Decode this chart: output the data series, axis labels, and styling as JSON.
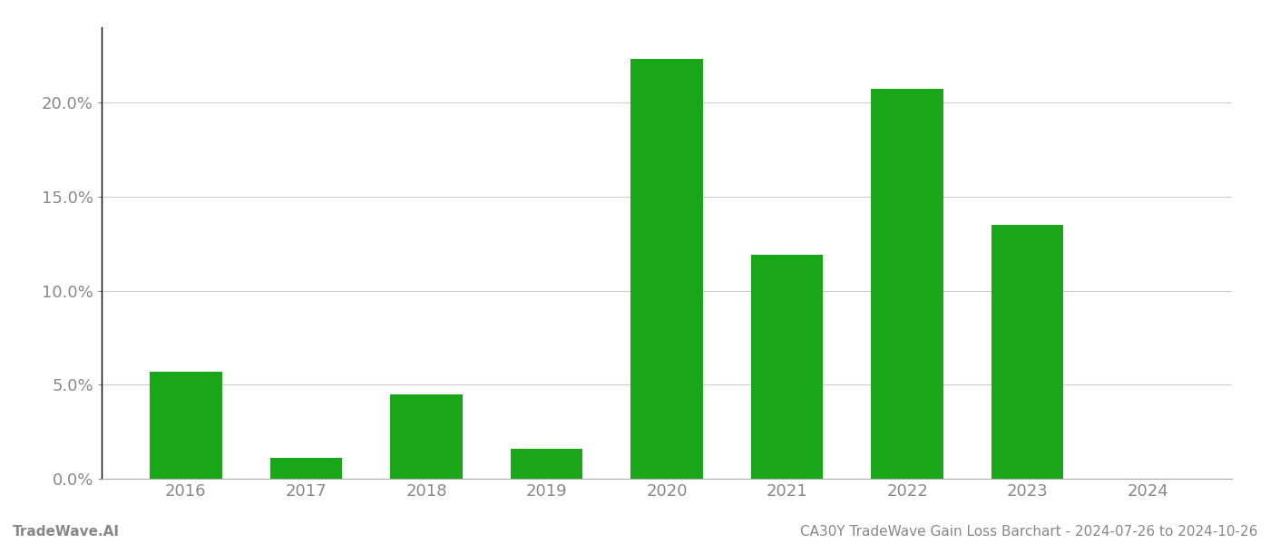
{
  "years": [
    2016,
    2017,
    2018,
    2019,
    2020,
    2021,
    2022,
    2023,
    2024
  ],
  "values": [
    0.057,
    0.011,
    0.045,
    0.016,
    0.223,
    0.119,
    0.207,
    0.135,
    0.0
  ],
  "bar_color": "#1aa619",
  "background_color": "#ffffff",
  "grid_color": "#cccccc",
  "ylim": [
    0,
    0.24
  ],
  "yticks": [
    0.0,
    0.05,
    0.1,
    0.15,
    0.2
  ],
  "ytick_labels": [
    "0.0%",
    "5.0%",
    "10.0%",
    "15.0%",
    "20.0%"
  ],
  "tick_fontsize": 13,
  "footer_left": "TradeWave.AI",
  "footer_right": "CA30Y TradeWave Gain Loss Barchart - 2024-07-26 to 2024-10-26",
  "footer_fontsize": 11,
  "footer_color": "#888888",
  "bar_width": 0.6
}
